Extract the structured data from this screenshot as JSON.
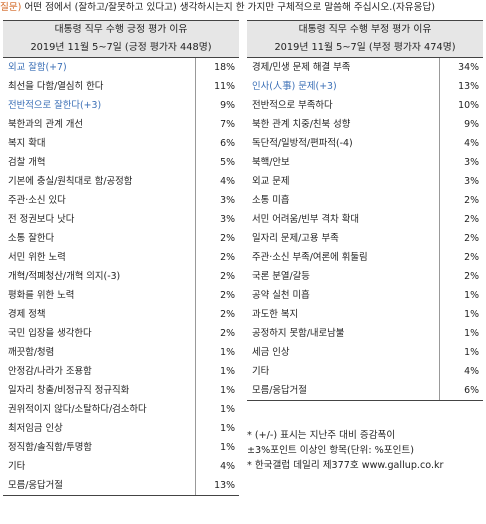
{
  "question": {
    "label": "질문)",
    "text": " 어떤 점에서 (잘하고/잘못하고 있다고) 생각하시는지 한 가지만 구체적으로 말씀해 주십시오.(자유응답)"
  },
  "left_table": {
    "title": "대통령 직무 수행 긍정 평가 이유",
    "subtitle": "2019년 11월 5~7일 (긍정 평가자 448명)",
    "rows": [
      {
        "label": "외교 잘함(+7)",
        "value": "18%",
        "highlight": true
      },
      {
        "label": "최선을 다함/열심히 한다",
        "value": "11%",
        "highlight": false
      },
      {
        "label": "전반적으로 잘한다(+3)",
        "value": "9%",
        "highlight": true
      },
      {
        "label": "북한과의 관계 개선",
        "value": "7%",
        "highlight": false
      },
      {
        "label": "복지 확대",
        "value": "6%",
        "highlight": false
      },
      {
        "label": "검찰 개혁",
        "value": "5%",
        "highlight": false
      },
      {
        "label": "기본에 충실/원칙대로 함/공정함",
        "value": "4%",
        "highlight": false
      },
      {
        "label": "주관·소신 있다",
        "value": "3%",
        "highlight": false
      },
      {
        "label": "전 정권보다 낫다",
        "value": "3%",
        "highlight": false
      },
      {
        "label": "소통 잘한다",
        "value": "2%",
        "highlight": false
      },
      {
        "label": "서민 위한 노력",
        "value": "2%",
        "highlight": false
      },
      {
        "label": "개혁/적폐청산/개혁 의지(-3)",
        "value": "2%",
        "highlight": false
      },
      {
        "label": "평화를 위한 노력",
        "value": "2%",
        "highlight": false
      },
      {
        "label": "경제 정책",
        "value": "2%",
        "highlight": false
      },
      {
        "label": "국민 입장을 생각한다",
        "value": "2%",
        "highlight": false
      },
      {
        "label": "깨끗함/청렴",
        "value": "1%",
        "highlight": false
      },
      {
        "label": "안정감/나라가 조용함",
        "value": "1%",
        "highlight": false
      },
      {
        "label": "일자리 창출/비정규직 정규직화",
        "value": "1%",
        "highlight": false
      },
      {
        "label": "권위적이지 않다/소탈하다/검소하다",
        "value": "1%",
        "highlight": false
      },
      {
        "label": "최저임금 인상",
        "value": "1%",
        "highlight": false
      },
      {
        "label": "정직함/솔직함/투명함",
        "value": "1%",
        "highlight": false
      },
      {
        "label": "기타",
        "value": "4%",
        "highlight": false
      },
      {
        "label": "모름/응답거절",
        "value": "13%",
        "highlight": false
      }
    ]
  },
  "right_table": {
    "title": "대통령 직무 수행 부정 평가 이유",
    "subtitle": "2019년 11월 5~7일 (부정 평가자 474명)",
    "rows": [
      {
        "label": "경제/민생 문제 해결 부족",
        "value": "34%",
        "highlight": false
      },
      {
        "label": "인사(人事) 문제(+3)",
        "value": "13%",
        "highlight": true
      },
      {
        "label": "전반적으로 부족하다",
        "value": "10%",
        "highlight": false
      },
      {
        "label": "북한 관계 치중/친북 성향",
        "value": "9%",
        "highlight": false
      },
      {
        "label": "독단적/일방적/편파적(-4)",
        "value": "4%",
        "highlight": false
      },
      {
        "label": "북핵/안보",
        "value": "3%",
        "highlight": false
      },
      {
        "label": "외교 문제",
        "value": "3%",
        "highlight": false
      },
      {
        "label": "소통 미흡",
        "value": "2%",
        "highlight": false
      },
      {
        "label": "서민 어려움/빈부 격차 확대",
        "value": "2%",
        "highlight": false
      },
      {
        "label": "일자리 문제/고용 부족",
        "value": "2%",
        "highlight": false
      },
      {
        "label": "주관·소신 부족/여론에 휘둘림",
        "value": "2%",
        "highlight": false
      },
      {
        "label": "국론 분열/갈등",
        "value": "2%",
        "highlight": false
      },
      {
        "label": "공약 실천 미흡",
        "value": "1%",
        "highlight": false
      },
      {
        "label": "과도한 복지",
        "value": "1%",
        "highlight": false
      },
      {
        "label": "공정하지 못함/내로남불",
        "value": "1%",
        "highlight": false
      },
      {
        "label": "세금 인상",
        "value": "1%",
        "highlight": false
      },
      {
        "label": "기타",
        "value": "4%",
        "highlight": false
      },
      {
        "label": "모름/응답거절",
        "value": "6%",
        "highlight": false
      }
    ]
  },
  "notes": [
    "* (+/-) 표시는 지난주 대비 증감폭이",
    "  ±3%포인트 이상인 항목(단위: %포인트)",
    "* 한국갤럽 데일리 제377호 www.gallup.co.kr"
  ],
  "colors": {
    "highlight_text": "#3b6fb6",
    "question_label": "#d2641f",
    "header_bg": "#e6e6e6"
  }
}
